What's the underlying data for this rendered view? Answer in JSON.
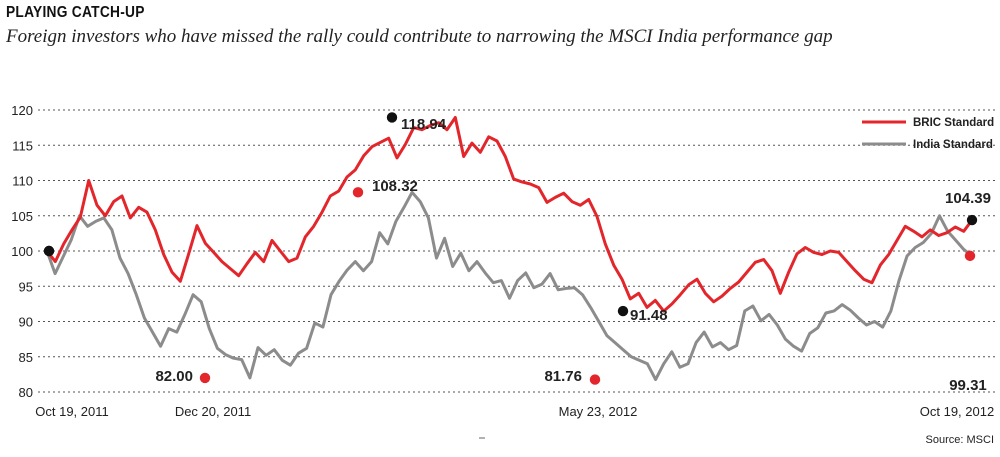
{
  "header": {
    "title": "PLAYING CATCH-UP",
    "subtitle": "Foreign investors who have missed the rally could contribute to narrowing the MSCI India performance gap"
  },
  "source": "Source: MSCI",
  "colors": {
    "bric": "#e3262b",
    "india": "#8c8c8c",
    "marker_black": "#111111",
    "marker_red": "#e3262b",
    "grid": "#555555"
  },
  "chart_data": {
    "type": "line",
    "title": "PLAYING CATCH-UP",
    "ylim": [
      80,
      120
    ],
    "yticks": [
      "80",
      "85",
      "90",
      "95",
      "100",
      "105",
      "110",
      "115",
      "120"
    ],
    "grid": "horizontal dashed",
    "legend_placement": "top-right",
    "x_tick_labels": [
      "Oct 19, 2011",
      "Dec 20, 2011",
      "May 23, 2012",
      "Oct 19, 2012"
    ],
    "series": [
      {
        "name": "BRIC Standard",
        "values": [
          100,
          98.5,
          101,
          103,
          104.8,
          110,
          106.5,
          105,
          107,
          107.8,
          104.7,
          106.2,
          105.5,
          103,
          99.5,
          97,
          95.7,
          99.6,
          103.6,
          101.1,
          99.8,
          98.5,
          97.5,
          96.5,
          98.2,
          99.8,
          98.5,
          101.5,
          100,
          98.5,
          99,
          102,
          103.5,
          105.5,
          107.8,
          108.5,
          110.5,
          111.5,
          113.5,
          114.8,
          115.4,
          116,
          113.2,
          115.1,
          117.5,
          117.2,
          117.8,
          118.2,
          117.2,
          118.94,
          113.4,
          115.3,
          114,
          116.2,
          115.6,
          113.4,
          110.2,
          109.8,
          109.5,
          109,
          106.9,
          107.6,
          108.2,
          107,
          106.5,
          107.3,
          104.9,
          101,
          98,
          96,
          93.2,
          94,
          92,
          93,
          91.48,
          92.5,
          93.8,
          95.2,
          96,
          94,
          92.8,
          93.6,
          94.7,
          95.6,
          97,
          98.4,
          98.8,
          97.2,
          94,
          97,
          99.6,
          100.5,
          99.8,
          99.5,
          100,
          99.8,
          98.5,
          97.2,
          96,
          95.5,
          98,
          99.5,
          101.5,
          103.5,
          102.8,
          102,
          103,
          102.2,
          102.6,
          103.4,
          102.8,
          104.39
        ],
        "markers": [
          {
            "x": "Oct 19, 2011",
            "value": 100,
            "label": ""
          },
          {
            "x": "",
            "value": 118.94,
            "label": "118.94"
          },
          {
            "x": "",
            "value": 91.48,
            "label": "91.48"
          },
          {
            "x": "Oct 19, 2012",
            "value": 104.39,
            "label": "104.39"
          }
        ]
      },
      {
        "name": "India Standard",
        "values": [
          100,
          96.8,
          99.2,
          101.6,
          105,
          103.5,
          104.2,
          104.7,
          103,
          99,
          96.8,
          93.8,
          90.5,
          88.5,
          86.5,
          89,
          88.5,
          91,
          93.8,
          92.8,
          89,
          86.2,
          85.3,
          84.8,
          84.6,
          82,
          86.3,
          85.2,
          86,
          84.5,
          83.8,
          85.5,
          86.2,
          89.8,
          89.2,
          93.8,
          95.7,
          97.3,
          98.5,
          97.2,
          98.5,
          102.6,
          101,
          104.2,
          106.2,
          108.32,
          107,
          104.7,
          99,
          101.8,
          97.8,
          99.7,
          97.2,
          98.5,
          96.9,
          95.5,
          95.8,
          93.3,
          95.8,
          96.9,
          94.8,
          95.3,
          96.8,
          94.5,
          94.7,
          94.8,
          93.8,
          92,
          90,
          88,
          87,
          86,
          85,
          84.5,
          84,
          81.76,
          84,
          85.7,
          83.5,
          84,
          87,
          88.5,
          86.4,
          87,
          86,
          86.6,
          91.5,
          92.2,
          90.1,
          91,
          89.5,
          87.5,
          86.5,
          85.8,
          88.3,
          89.1,
          91.2,
          91.5,
          92.4,
          91.6,
          90.5,
          89.5,
          90,
          89.2,
          91.5,
          95.8,
          99.3,
          100.5,
          101.2,
          102.5,
          105,
          102.8,
          101.5,
          100.2,
          99.31
        ],
        "markers": [
          {
            "x": "Oct 19, 2011",
            "value": 100,
            "label": ""
          },
          {
            "x": "Dec 20, 2011",
            "value": 82.0,
            "label": "82.00"
          },
          {
            "x": "",
            "value": 108.32,
            "label": "108.32"
          },
          {
            "x": "May 23, 2012",
            "value": 81.76,
            "label": "81.76"
          },
          {
            "x": "Oct 19, 2012",
            "value": 99.31,
            "label": "99.31"
          }
        ]
      }
    ]
  }
}
